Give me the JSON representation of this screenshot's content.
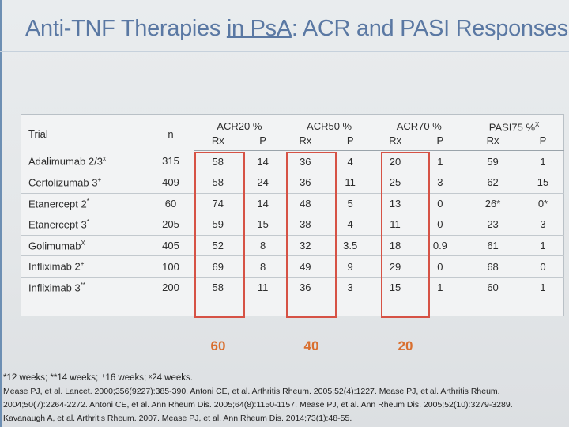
{
  "title": {
    "prefix": "Anti-TNF Therapies ",
    "underlined": "in PsA",
    "suffix": ": ACR and PASI Responses"
  },
  "table": {
    "col_trial": "Trial",
    "col_n": "n",
    "groups": [
      {
        "label": "ACR20 %",
        "rx": "Rx",
        "p": "P"
      },
      {
        "label": "ACR50 %",
        "rx": "Rx",
        "p": "P"
      },
      {
        "label": "ACR70 %",
        "rx": "Rx",
        "p": "P"
      },
      {
        "label": "PASI75 %",
        "label_sup": "X",
        "rx": "Rx",
        "p": "P"
      }
    ],
    "rows": [
      {
        "trial": "Adalimumab 2/3",
        "sup": "x",
        "n": "315",
        "acr20_rx": "58",
        "acr20_p": "14",
        "acr50_rx": "36",
        "acr50_p": "4",
        "acr70_rx": "20",
        "acr70_p": "1",
        "pasi_rx": "59",
        "pasi_p": "1"
      },
      {
        "trial": "Certolizumab 3",
        "sup": "+",
        "n": "409",
        "acr20_rx": "58",
        "acr20_p": "24",
        "acr50_rx": "36",
        "acr50_p": "11",
        "acr70_rx": "25",
        "acr70_p": "3",
        "pasi_rx": "62",
        "pasi_p": "15"
      },
      {
        "trial": "Etanercept 2",
        "sup": "*",
        "n": "60",
        "acr20_rx": "74",
        "acr20_p": "14",
        "acr50_rx": "48",
        "acr50_p": "5",
        "acr70_rx": "13",
        "acr70_p": "0",
        "pasi_rx": "26*",
        "pasi_p": "0*"
      },
      {
        "trial": "Etanercept 3",
        "sup": "*",
        "n": "205",
        "acr20_rx": "59",
        "acr20_p": "15",
        "acr50_rx": "38",
        "acr50_p": "4",
        "acr70_rx": "11",
        "acr70_p": "0",
        "pasi_rx": "23",
        "pasi_p": "3"
      },
      {
        "trial": "Golimumab",
        "sup": "X",
        "n": "405",
        "acr20_rx": "52",
        "acr20_p": "8",
        "acr50_rx": "32",
        "acr50_p": "3.5",
        "acr70_rx": "18",
        "acr70_p": "0.9",
        "pasi_rx": "61",
        "pasi_p": "1"
      },
      {
        "trial": "Infliximab 2",
        "sup": "+",
        "n": "100",
        "acr20_rx": "69",
        "acr20_p": "8",
        "acr50_rx": "49",
        "acr50_p": "9",
        "acr70_rx": "29",
        "acr70_p": "0",
        "pasi_rx": "68",
        "pasi_p": "0"
      },
      {
        "trial": "Infliximab 3",
        "sup": "**",
        "n": "200",
        "acr20_rx": "58",
        "acr20_p": "11",
        "acr50_rx": "36",
        "acr50_p": "3",
        "acr70_rx": "15",
        "acr70_p": "1",
        "pasi_rx": "60",
        "pasi_p": "1"
      }
    ]
  },
  "highlight_labels": {
    "acr20": "60",
    "acr50": "40",
    "acr70": "20"
  },
  "colors": {
    "title": "#5a78a3",
    "highlight_box": "#d65245",
    "highlight_label": "#d96f2f"
  },
  "footnotes": {
    "weeks": "*12 weeks; **14 weeks; ⁺16 weeks; ˣ24 weeks.",
    "line1": "Mease PJ, et al. Lancet. 2000;356(9227):385-390. Antoni CE, et al. Arthritis Rheum. 2005;52(4):1227. Mease PJ, et al. Arthritis Rheum.",
    "line2": "2004;50(7):2264-2272. Antoni CE, et al. Ann Rheum Dis. 2005;64(8):1150-1157. Mease PJ, et al. Ann Rheum Dis. 2005;52(10):3279-3289.",
    "line3": "Kavanaugh A, et al. Arthritis Rheum. 2007. Mease PJ, et al. Ann Rheum Dis. 2014;73(1):48-55."
  }
}
